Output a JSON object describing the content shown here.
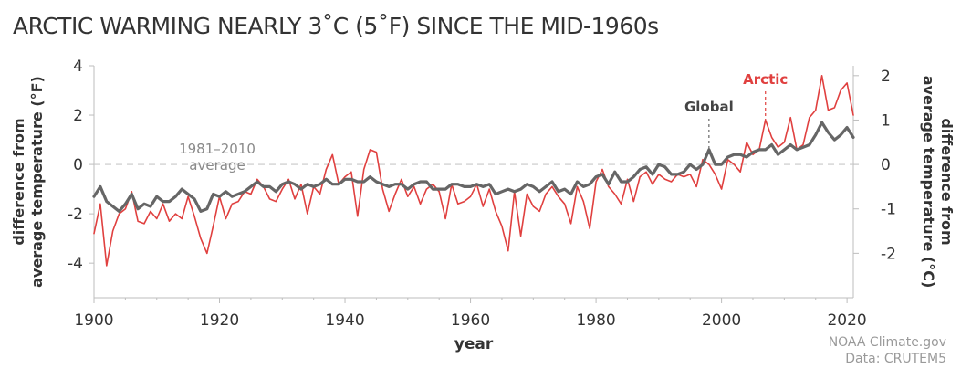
{
  "chart_data": {
    "type": "line",
    "title": "ARCTIC WARMING NEARLY 3˚C (5˚F) SINCE THE MID-1960s",
    "xlabel": "year",
    "ylabel_left": "difference from average temperature (°F)",
    "ylabel_left_lines": [
      "difference from",
      "average temperature (°F)"
    ],
    "ylabel_right": "difference from average temperature (°C)",
    "ylabel_right_lines": [
      "difference from",
      "average temperature (°C)"
    ],
    "xlim": [
      1900,
      2021
    ],
    "ylim_left_F": [
      -5.4,
      4
    ],
    "ylim_right_C": [
      -3,
      2.222
    ],
    "x_ticks": [
      1900,
      1920,
      1940,
      1960,
      1980,
      2000,
      2020
    ],
    "y_ticks_left": [
      -4,
      -2,
      0,
      2,
      4
    ],
    "y_ticks_right": [
      -2,
      -1,
      0,
      1,
      2
    ],
    "baseline_label_lines": [
      "1981–2010",
      "average"
    ],
    "grid": false,
    "x": [
      1900,
      1901,
      1902,
      1903,
      1904,
      1905,
      1906,
      1907,
      1908,
      1909,
      1910,
      1911,
      1912,
      1913,
      1914,
      1915,
      1916,
      1917,
      1918,
      1919,
      1920,
      1921,
      1922,
      1923,
      1924,
      1925,
      1926,
      1927,
      1928,
      1929,
      1930,
      1931,
      1932,
      1933,
      1934,
      1935,
      1936,
      1937,
      1938,
      1939,
      1940,
      1941,
      1942,
      1943,
      1944,
      1945,
      1946,
      1947,
      1948,
      1949,
      1950,
      1951,
      1952,
      1953,
      1954,
      1955,
      1956,
      1957,
      1958,
      1959,
      1960,
      1961,
      1962,
      1963,
      1964,
      1965,
      1966,
      1967,
      1968,
      1969,
      1970,
      1971,
      1972,
      1973,
      1974,
      1975,
      1976,
      1977,
      1978,
      1979,
      1980,
      1981,
      1982,
      1983,
      1984,
      1985,
      1986,
      1987,
      1988,
      1989,
      1990,
      1991,
      1992,
      1993,
      1994,
      1995,
      1996,
      1997,
      1998,
      1999,
      2000,
      2001,
      2002,
      2003,
      2004,
      2005,
      2006,
      2007,
      2008,
      2009,
      2010,
      2011,
      2012,
      2013,
      2014,
      2015,
      2016,
      2017,
      2018,
      2019,
      2020,
      2021
    ],
    "series": [
      {
        "name": "Arctic",
        "unit": "°F",
        "color": "#e0403f",
        "values": [
          -2.8,
          -1.6,
          -4.1,
          -2.7,
          -2.0,
          -1.8,
          -1.1,
          -2.3,
          -2.4,
          -1.9,
          -2.2,
          -1.6,
          -2.3,
          -2.0,
          -2.2,
          -1.3,
          -2.1,
          -3.0,
          -3.6,
          -2.5,
          -1.3,
          -2.2,
          -1.6,
          -1.5,
          -1.1,
          -1.2,
          -0.6,
          -0.9,
          -1.4,
          -1.5,
          -1.0,
          -0.6,
          -1.4,
          -0.8,
          -2.0,
          -0.9,
          -1.2,
          -0.2,
          0.4,
          -0.8,
          -0.5,
          -0.3,
          -2.1,
          -0.2,
          0.6,
          0.5,
          -1.0,
          -1.9,
          -1.2,
          -0.6,
          -1.3,
          -0.9,
          -1.6,
          -1.0,
          -0.8,
          -1.1,
          -2.2,
          -0.8,
          -1.6,
          -1.5,
          -1.3,
          -0.8,
          -1.7,
          -1.0,
          -1.9,
          -2.5,
          -3.5,
          -1.1,
          -2.9,
          -1.2,
          -1.7,
          -1.9,
          -1.2,
          -0.9,
          -1.3,
          -1.6,
          -2.4,
          -0.9,
          -1.5,
          -2.6,
          -0.7,
          -0.2,
          -0.9,
          -1.2,
          -1.6,
          -0.6,
          -1.5,
          -0.5,
          -0.3,
          -0.8,
          -0.4,
          -0.6,
          -0.7,
          -0.4,
          -0.5,
          -0.4,
          -0.9,
          0.2,
          0.0,
          -0.4,
          -1.0,
          0.2,
          0.0,
          -0.3,
          0.9,
          0.4,
          0.6,
          1.8,
          1.1,
          0.7,
          0.9,
          1.9,
          0.6,
          0.8,
          1.9,
          2.2,
          3.6,
          2.2,
          2.3,
          3.0,
          3.3,
          2.0
        ]
      },
      {
        "name": "Global",
        "unit": "°F",
        "color": "#666666",
        "values": [
          -1.3,
          -0.9,
          -1.5,
          -1.7,
          -1.9,
          -1.6,
          -1.2,
          -1.8,
          -1.6,
          -1.7,
          -1.3,
          -1.5,
          -1.5,
          -1.3,
          -1.0,
          -1.2,
          -1.4,
          -1.9,
          -1.8,
          -1.2,
          -1.3,
          -1.1,
          -1.3,
          -1.2,
          -1.1,
          -0.9,
          -0.7,
          -0.9,
          -0.9,
          -1.1,
          -0.8,
          -0.7,
          -0.8,
          -1.0,
          -0.8,
          -0.9,
          -0.8,
          -0.6,
          -0.8,
          -0.8,
          -0.6,
          -0.6,
          -0.7,
          -0.7,
          -0.5,
          -0.7,
          -0.8,
          -0.9,
          -0.8,
          -0.8,
          -1.0,
          -0.8,
          -0.7,
          -0.7,
          -1.0,
          -1.0,
          -1.0,
          -0.8,
          -0.8,
          -0.9,
          -0.9,
          -0.8,
          -0.9,
          -0.8,
          -1.2,
          -1.1,
          -1.0,
          -1.1,
          -1.0,
          -0.8,
          -0.9,
          -1.1,
          -0.9,
          -0.7,
          -1.1,
          -1.0,
          -1.2,
          -0.7,
          -0.9,
          -0.8,
          -0.5,
          -0.4,
          -0.8,
          -0.3,
          -0.7,
          -0.7,
          -0.5,
          -0.2,
          -0.1,
          -0.4,
          0.0,
          -0.1,
          -0.4,
          -0.4,
          -0.3,
          0.0,
          -0.2,
          0.0,
          0.6,
          0.0,
          0.0,
          0.3,
          0.4,
          0.4,
          0.3,
          0.5,
          0.6,
          0.6,
          0.8,
          0.4,
          0.6,
          0.8,
          0.6,
          0.7,
          0.8,
          1.2,
          1.7,
          1.3,
          1.0,
          1.2,
          1.5,
          1.1
        ]
      }
    ],
    "annotations": {
      "global_label": "Global",
      "arctic_label": "Arctic"
    }
  },
  "credit": {
    "line1": "NOAA Climate.gov",
    "line2": "Data: CRUTEM5"
  }
}
